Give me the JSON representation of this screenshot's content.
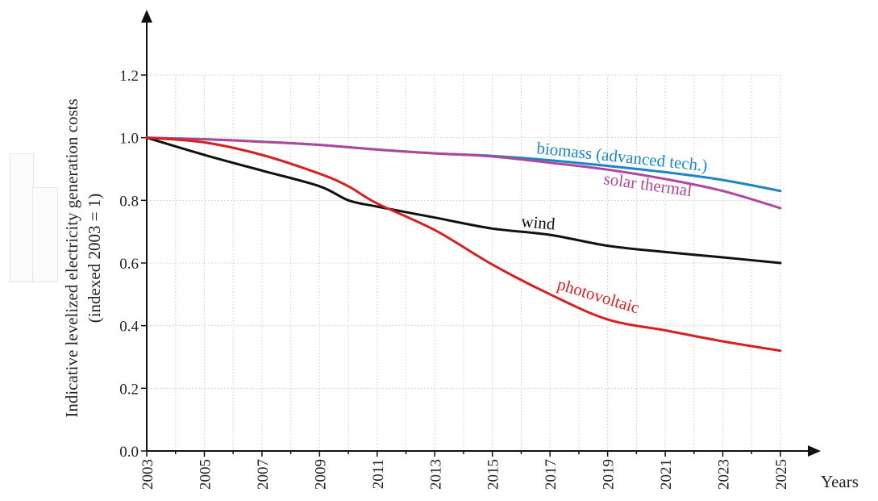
{
  "chart_data": {
    "type": "line",
    "title": "",
    "xlabel": "Years",
    "ylabel_line1": "Indicative levelized electricity  generation costs",
    "ylabel_line2": "(indexed 2003 = 1)",
    "xlim": [
      2003,
      2025
    ],
    "ylim": [
      0,
      1.2
    ],
    "x_ticks": [
      2003,
      2005,
      2007,
      2009,
      2011,
      2013,
      2015,
      2017,
      2019,
      2021,
      2023,
      2025
    ],
    "y_ticks": [
      0.0,
      0.2,
      0.4,
      0.6,
      0.8,
      1.0,
      1.2
    ],
    "y_tick_labels": [
      "0.0",
      "0.2",
      "0.4",
      "0.6",
      "0.8",
      "1.0",
      "1.2"
    ],
    "grid": true,
    "legend": "inline labels",
    "series": [
      {
        "name": "biomass (advanced tech.)",
        "color": "#1a86c7",
        "x": [
          2003,
          2005,
          2007,
          2009,
          2011,
          2013,
          2015,
          2017,
          2019,
          2021,
          2023,
          2025
        ],
        "values": [
          1.0,
          0.995,
          0.987,
          0.977,
          0.962,
          0.95,
          0.942,
          0.928,
          0.91,
          0.89,
          0.865,
          0.83
        ]
      },
      {
        "name": "solar thermal",
        "color": "#b0479b",
        "x": [
          2003,
          2005,
          2007,
          2009,
          2011,
          2013,
          2015,
          2017,
          2019,
          2021,
          2023,
          2025
        ],
        "values": [
          1.0,
          0.995,
          0.987,
          0.977,
          0.962,
          0.95,
          0.94,
          0.92,
          0.898,
          0.868,
          0.83,
          0.775
        ]
      },
      {
        "name": "wind",
        "color": "#111111",
        "x": [
          2003,
          2005,
          2007,
          2009,
          2010,
          2011,
          2013,
          2015,
          2017,
          2019,
          2021,
          2023,
          2025
        ],
        "values": [
          1.0,
          0.945,
          0.895,
          0.845,
          0.8,
          0.78,
          0.745,
          0.71,
          0.69,
          0.655,
          0.635,
          0.618,
          0.6
        ]
      },
      {
        "name": "photovoltaic",
        "color": "#d42222",
        "x": [
          2003,
          2005,
          2007,
          2009,
          2010,
          2011,
          2013,
          2015,
          2017,
          2019,
          2021,
          2023,
          2025
        ],
        "values": [
          1.0,
          0.985,
          0.945,
          0.885,
          0.845,
          0.79,
          0.705,
          0.595,
          0.5,
          0.42,
          0.385,
          0.35,
          0.32
        ]
      }
    ]
  }
}
